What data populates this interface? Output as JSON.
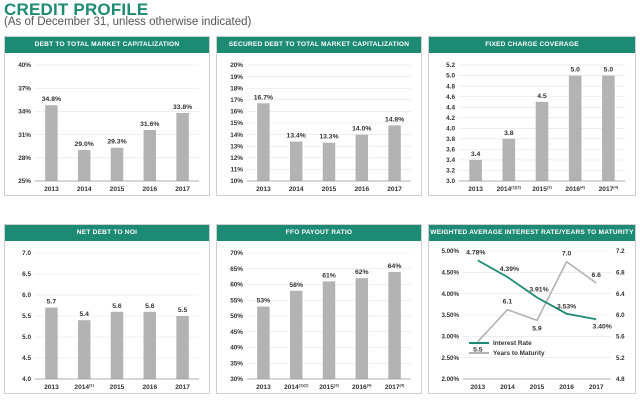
{
  "page": {
    "title": "CREDIT PROFILE",
    "subtitle": "(As of December 31, unless otherwise indicated)"
  },
  "colors": {
    "accent": "#1d8a73",
    "bar": "#b3b3b3",
    "line2": "#b3b3b3",
    "grid": "#e3e3e3"
  },
  "chart_data": [
    {
      "id": "c1",
      "type": "bar",
      "title": "DEBT TO TOTAL MARKET CAPITALIZATION",
      "categories": [
        "2013",
        "2014",
        "2015",
        "2016",
        "2017"
      ],
      "values": [
        34.8,
        29.0,
        29.3,
        31.6,
        33.8
      ],
      "value_labels": [
        "34.8%",
        "29.0%",
        "29.3%",
        "31.6%",
        "33.8%"
      ],
      "ylim": [
        25,
        40
      ],
      "yticks": [
        25,
        28,
        31,
        34,
        37,
        40
      ],
      "ytick_labels": [
        "25%",
        "28%",
        "31%",
        "34%",
        "37%",
        "40%"
      ]
    },
    {
      "id": "c2",
      "type": "bar",
      "title": "SECURED DEBT TO TOTAL MARKET CAPITALIZATION",
      "categories": [
        "2013",
        "2014",
        "2015",
        "2016",
        "2017"
      ],
      "values": [
        16.7,
        13.4,
        13.3,
        14.0,
        14.8
      ],
      "value_labels": [
        "16.7%",
        "13.4%",
        "13.3%",
        "14.0%",
        "14.8%"
      ],
      "ylim": [
        10,
        20
      ],
      "yticks": [
        10,
        11,
        12,
        13,
        14,
        15,
        16,
        17,
        18,
        19,
        20
      ],
      "ytick_labels": [
        "10%",
        "11%",
        "12%",
        "13%",
        "14%",
        "15%",
        "16%",
        "17%",
        "18%",
        "19%",
        "20%"
      ]
    },
    {
      "id": "c3",
      "type": "bar",
      "title": "FIXED CHARGE COVERAGE",
      "categories": [
        "2013",
        "2014(1)(2)",
        "2015(3)",
        "2016(4)",
        "2017(4)"
      ],
      "values": [
        3.4,
        3.8,
        4.5,
        5.0,
        5.0
      ],
      "value_labels": [
        "3.4",
        "3.8",
        "4.5",
        "5.0",
        "5.0"
      ],
      "ylim": [
        3.0,
        5.2
      ],
      "yticks": [
        3.0,
        3.2,
        3.4,
        3.6,
        3.8,
        4.0,
        4.2,
        4.4,
        4.6,
        4.8,
        5.0,
        5.2
      ],
      "ytick_labels": [
        "3.0",
        "3.2",
        "3.4",
        "3.6",
        "3.8",
        "4.0",
        "4.2",
        "4.4",
        "4.6",
        "4.8",
        "5.0",
        "5.2"
      ]
    },
    {
      "id": "c4",
      "type": "bar",
      "title": "NET DEBT TO NOI",
      "categories": [
        "2013",
        "2014(1)",
        "2015",
        "2016",
        "2017"
      ],
      "values": [
        5.7,
        5.4,
        5.6,
        5.6,
        5.5
      ],
      "value_labels": [
        "5.7",
        "5.4",
        "5.6",
        "5.6",
        "5.5"
      ],
      "ylim": [
        4.0,
        7.0
      ],
      "yticks": [
        4.0,
        4.5,
        5.0,
        5.5,
        6.0,
        6.5,
        7.0
      ],
      "ytick_labels": [
        "4.0",
        "4.5",
        "5.0",
        "5.5",
        "6.0",
        "6.5",
        "7.0"
      ]
    },
    {
      "id": "c5",
      "type": "bar",
      "title": "FFO PAYOUT RATIO",
      "categories": [
        "2013",
        "2014(1)(2)",
        "2015(3)",
        "2016(4)",
        "2017(4)"
      ],
      "values": [
        53,
        58,
        61,
        62,
        64
      ],
      "value_labels": [
        "53%",
        "58%",
        "61%",
        "62%",
        "64%"
      ],
      "ylim": [
        30,
        70
      ],
      "yticks": [
        30,
        35,
        40,
        45,
        50,
        55,
        60,
        65,
        70
      ],
      "ytick_labels": [
        "30%",
        "35%",
        "40%",
        "45%",
        "50%",
        "55%",
        "60%",
        "65%",
        "70%"
      ]
    },
    {
      "id": "c6",
      "type": "line",
      "title": "WEIGHTED AVERAGE INTEREST RATE/YEARS TO MATURITY",
      "categories": [
        "2013",
        "2014",
        "2015",
        "2016",
        "2017"
      ],
      "series": [
        {
          "name": "Interest Rate",
          "values": [
            4.78,
            4.39,
            3.91,
            3.53,
            3.4
          ],
          "value_labels": [
            "4.78%",
            "4.39%",
            "3.91%",
            "3.53%",
            "3.40%"
          ],
          "axis": "left"
        },
        {
          "name": "Years to Maturity",
          "values": [
            5.5,
            6.1,
            5.9,
            7.0,
            6.6
          ],
          "value_labels": [
            "5.5",
            "6.1",
            "5.9",
            "7.0",
            "6.6"
          ],
          "axis": "right"
        }
      ],
      "ylim": [
        2.0,
        5.0
      ],
      "yticks": [
        2.0,
        2.5,
        3.0,
        3.5,
        4.0,
        4.5,
        5.0
      ],
      "ytick_labels": [
        "2.00%",
        "2.50%",
        "3.00%",
        "3.50%",
        "4.00%",
        "4.50%",
        "5.00%"
      ],
      "y2lim": [
        4.8,
        7.2
      ],
      "y2ticks": [
        4.8,
        5.2,
        5.6,
        6.0,
        6.4,
        6.8,
        7.2
      ],
      "y2tick_labels": [
        "4.8",
        "5.2",
        "5.6",
        "6.0",
        "6.4",
        "6.8",
        "7.2"
      ],
      "legend": "bottom-left"
    }
  ]
}
